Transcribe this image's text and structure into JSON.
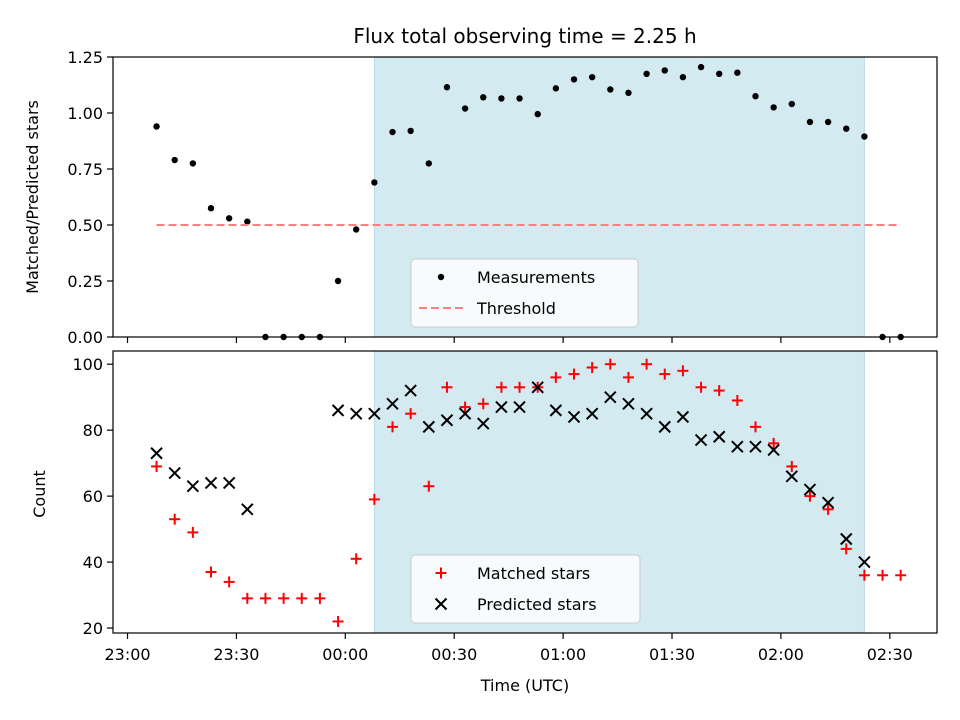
{
  "chart_data": [
    {
      "type": "scatter",
      "title": "Flux total observing time = 2.25 h",
      "xlabel": "",
      "ylabel": "Matched/Predicted stars",
      "xlim": [
        "22:56",
        "02:43"
      ],
      "ylim": [
        0,
        1.25
      ],
      "yticks": [
        "0.00",
        "0.25",
        "0.50",
        "0.75",
        "1.00",
        "1.25"
      ],
      "shaded_span": [
        "00:08",
        "02:23"
      ],
      "shaded_color": "#d4eaf1",
      "legend": {
        "placement": "lower-center",
        "entries": [
          "Measurements",
          "Threshold"
        ]
      },
      "series": [
        {
          "name": "Measurements",
          "marker": "dot",
          "color": "#000000",
          "points": [
            [
              "23:08",
              0.94
            ],
            [
              "23:13",
              0.79
            ],
            [
              "23:18",
              0.775
            ],
            [
              "23:23",
              0.575
            ],
            [
              "23:28",
              0.53
            ],
            [
              "23:33",
              0.515
            ],
            [
              "23:38",
              0.0
            ],
            [
              "23:43",
              0.0
            ],
            [
              "23:48",
              0.0
            ],
            [
              "23:53",
              0.0
            ],
            [
              "23:58",
              0.25
            ],
            [
              "00:03",
              0.48
            ],
            [
              "00:08",
              0.69
            ],
            [
              "00:13",
              0.915
            ],
            [
              "00:18",
              0.92
            ],
            [
              "00:23",
              0.775
            ],
            [
              "00:28",
              1.115
            ],
            [
              "00:33",
              1.02
            ],
            [
              "00:38",
              1.07
            ],
            [
              "00:43",
              1.065
            ],
            [
              "00:48",
              1.065
            ],
            [
              "00:53",
              0.995
            ],
            [
              "00:58",
              1.11
            ],
            [
              "01:03",
              1.15
            ],
            [
              "01:08",
              1.16
            ],
            [
              "01:13",
              1.105
            ],
            [
              "01:18",
              1.09
            ],
            [
              "01:23",
              1.175
            ],
            [
              "01:28",
              1.19
            ],
            [
              "01:33",
              1.16
            ],
            [
              "01:38",
              1.205
            ],
            [
              "01:43",
              1.175
            ],
            [
              "01:48",
              1.18
            ],
            [
              "01:53",
              1.075
            ],
            [
              "01:58",
              1.025
            ],
            [
              "02:03",
              1.04
            ],
            [
              "02:08",
              0.96
            ],
            [
              "02:13",
              0.96
            ],
            [
              "02:18",
              0.93
            ],
            [
              "02:23",
              0.895
            ],
            [
              "02:28",
              0.0
            ],
            [
              "02:33",
              0.0
            ]
          ]
        },
        {
          "name": "Threshold",
          "marker": "dashed-line",
          "color": "#ff7f7f",
          "points": [
            [
              "23:08",
              0.5
            ],
            [
              "02:33",
              0.5
            ]
          ]
        }
      ]
    },
    {
      "type": "scatter",
      "xlabel": "Time (UTC)",
      "ylabel": "Count",
      "xlim": [
        "22:56",
        "02:43"
      ],
      "ylim": [
        18.5,
        104
      ],
      "xticks": [
        "23:00",
        "23:30",
        "00:00",
        "00:30",
        "01:00",
        "01:30",
        "02:00",
        "02:30"
      ],
      "yticks": [
        "20",
        "40",
        "60",
        "80",
        "100"
      ],
      "shaded_span": [
        "00:08",
        "02:23"
      ],
      "shaded_color": "#d4eaf1",
      "legend": {
        "placement": "lower-center",
        "entries": [
          "Matched stars",
          "Predicted stars"
        ]
      },
      "series": [
        {
          "name": "Matched stars",
          "marker": "plus",
          "color": "#ff0000",
          "points": [
            [
              "23:08",
              69
            ],
            [
              "23:13",
              53
            ],
            [
              "23:18",
              49
            ],
            [
              "23:23",
              37
            ],
            [
              "23:28",
              34
            ],
            [
              "23:33",
              29
            ],
            [
              "23:38",
              29
            ],
            [
              "23:43",
              29
            ],
            [
              "23:48",
              29
            ],
            [
              "23:53",
              29
            ],
            [
              "23:58",
              22
            ],
            [
              "00:03",
              41
            ],
            [
              "00:08",
              59
            ],
            [
              "00:13",
              81
            ],
            [
              "00:18",
              85
            ],
            [
              "00:23",
              63
            ],
            [
              "00:28",
              93
            ],
            [
              "00:33",
              87
            ],
            [
              "00:38",
              88
            ],
            [
              "00:43",
              93
            ],
            [
              "00:48",
              93
            ],
            [
              "00:53",
              93
            ],
            [
              "00:58",
              96
            ],
            [
              "01:03",
              97
            ],
            [
              "01:08",
              99
            ],
            [
              "01:13",
              100
            ],
            [
              "01:18",
              96
            ],
            [
              "01:23",
              100
            ],
            [
              "01:28",
              97
            ],
            [
              "01:33",
              98
            ],
            [
              "01:38",
              93
            ],
            [
              "01:43",
              92
            ],
            [
              "01:48",
              89
            ],
            [
              "01:53",
              81
            ],
            [
              "01:58",
              76
            ],
            [
              "02:03",
              69
            ],
            [
              "02:08",
              60
            ],
            [
              "02:13",
              56
            ],
            [
              "02:18",
              44
            ],
            [
              "02:23",
              36
            ],
            [
              "02:28",
              36
            ],
            [
              "02:33",
              36
            ]
          ]
        },
        {
          "name": "Predicted stars",
          "marker": "x",
          "color": "#000000",
          "points": [
            [
              "23:08",
              73
            ],
            [
              "23:13",
              67
            ],
            [
              "23:18",
              63
            ],
            [
              "23:23",
              64
            ],
            [
              "23:28",
              64
            ],
            [
              "23:33",
              56
            ],
            [
              "23:58",
              86
            ],
            [
              "00:03",
              85
            ],
            [
              "00:08",
              85
            ],
            [
              "00:13",
              88
            ],
            [
              "00:18",
              92
            ],
            [
              "00:23",
              81
            ],
            [
              "00:28",
              83
            ],
            [
              "00:33",
              85
            ],
            [
              "00:38",
              82
            ],
            [
              "00:43",
              87
            ],
            [
              "00:48",
              87
            ],
            [
              "00:53",
              93
            ],
            [
              "00:58",
              86
            ],
            [
              "01:03",
              84
            ],
            [
              "01:08",
              85
            ],
            [
              "01:13",
              90
            ],
            [
              "01:18",
              88
            ],
            [
              "01:23",
              85
            ],
            [
              "01:28",
              81
            ],
            [
              "01:33",
              84
            ],
            [
              "01:38",
              77
            ],
            [
              "01:43",
              78
            ],
            [
              "01:48",
              75
            ],
            [
              "01:53",
              75
            ],
            [
              "01:58",
              74
            ],
            [
              "02:03",
              66
            ],
            [
              "02:08",
              62
            ],
            [
              "02:13",
              58
            ],
            [
              "02:18",
              47
            ],
            [
              "02:23",
              40
            ]
          ]
        }
      ]
    }
  ]
}
